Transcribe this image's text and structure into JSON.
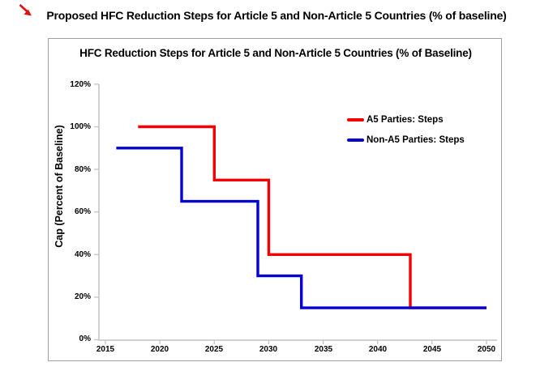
{
  "page": {
    "outer_title": "Proposed HFC Reduction Steps for Article 5 and Non-Article 5 Countries (% of baseline)",
    "annotation": {
      "icon": "red-arrow-icon",
      "color": "#dd1111"
    }
  },
  "chart_data": {
    "type": "line",
    "subtype": "step",
    "title": "HFC Reduction Steps for Article 5 and Non-Article 5 Countries (% of Baseline)",
    "xlabel": "",
    "ylabel": "Cap (Percent of Baseline)",
    "xlim": [
      2014.4,
      2050.8
    ],
    "ylim": [
      0,
      120
    ],
    "grid": false,
    "legend_position": "inside upper right",
    "x_ticks": [
      2015,
      2020,
      2025,
      2030,
      2035,
      2040,
      2045,
      2050
    ],
    "x_tick_labels": [
      "2015",
      "2020",
      "2025",
      "2030",
      "2035",
      "2040",
      "2045",
      "2050"
    ],
    "y_ticks": [
      0,
      20,
      40,
      60,
      80,
      100,
      120
    ],
    "y_tick_labels": [
      "0%",
      "20%",
      "40%",
      "60%",
      "80%",
      "100%",
      "120%"
    ],
    "axis_color": "#c4c4c4",
    "series": [
      {
        "name": "A5 Parties: Steps",
        "color": "#f40000",
        "points": [
          [
            2018,
            100
          ],
          [
            2025,
            100
          ],
          [
            2025,
            75
          ],
          [
            2030,
            75
          ],
          [
            2030,
            40
          ],
          [
            2043,
            40
          ],
          [
            2043,
            15
          ],
          [
            2050,
            15
          ]
        ]
      },
      {
        "name": "Non-A5 Parties: Steps",
        "color": "#0404ce",
        "points": [
          [
            2016,
            90
          ],
          [
            2022,
            90
          ],
          [
            2022,
            65
          ],
          [
            2029,
            65
          ],
          [
            2029,
            30
          ],
          [
            2033,
            30
          ],
          [
            2033,
            15
          ],
          [
            2050,
            15
          ]
        ]
      }
    ]
  }
}
